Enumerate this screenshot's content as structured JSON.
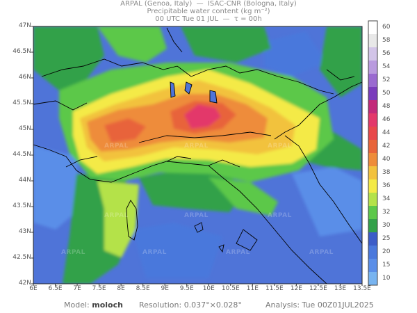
{
  "header": {
    "line1": "ARPAL (Genoa, Italy)  —  ISAC-CNR (Bologna, Italy)",
    "line2": "Precipitable water content (kg m⁻²)",
    "line3": "00 UTC Tue 01 JUL  —  τ = 00h"
  },
  "axes": {
    "lat_labels": [
      "47N",
      "46.5N",
      "46N",
      "45.5N",
      "45N",
      "44.5N",
      "44N",
      "43.5N",
      "43N",
      "42.5N",
      "42N"
    ],
    "lon_labels": [
      "6E",
      "6.5E",
      "7E",
      "7.5E",
      "8E",
      "8.5E",
      "9E",
      "9.5E",
      "10E",
      "10.5E",
      "11E",
      "11.5E",
      "12E",
      "12.5E",
      "13E",
      "13.5E"
    ]
  },
  "colorbar": {
    "labels": [
      "60",
      "58",
      "56",
      "54",
      "52",
      "50",
      "48",
      "46",
      "44",
      "42",
      "40",
      "38",
      "36",
      "34",
      "32",
      "30",
      "25",
      "20",
      "15",
      "10"
    ],
    "colors": [
      "#ffffff",
      "#e8e8e8",
      "#d2c4e8",
      "#b99ade",
      "#9a6ad0",
      "#7a3cbc",
      "#c22a7a",
      "#e3386a",
      "#e8484a",
      "#e8643a",
      "#ee8c3a",
      "#f2c23e",
      "#f4ea46",
      "#b4e24a",
      "#5cc84a",
      "#33a14a",
      "#3c5cc8",
      "#4a78dc",
      "#5a8ee8",
      "#78b4f0"
    ]
  },
  "watermark": "ARPAL",
  "footer": {
    "model_label": "Model:",
    "model_value": "moloch",
    "resolution_label": "Resolution:",
    "resolution_value": "0.037°×0.028°",
    "analysis_label": "Analysis:",
    "analysis_value": "Tue 00Z01JUL2025"
  }
}
